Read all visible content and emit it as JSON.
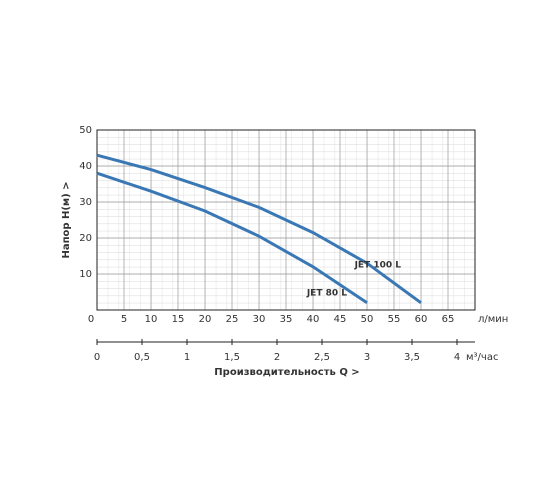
{
  "chart_data": {
    "type": "line",
    "y_label": "Напор   H(м)  >",
    "x_unit": "л/мин",
    "x2_unit": "м³/час",
    "x_label": "Производительность Q  >",
    "xlim": [
      0,
      70
    ],
    "xticks": [
      0,
      5,
      10,
      15,
      20,
      25,
      30,
      35,
      40,
      45,
      50,
      55,
      60,
      65
    ],
    "ylim": [
      0,
      50
    ],
    "yticks": [
      10,
      20,
      30,
      40,
      50
    ],
    "x2lim": [
      0,
      4.2
    ],
    "x2ticks": [
      0,
      {
        "value": 0.5,
        "label": "0,5"
      },
      1,
      {
        "value": 1.5,
        "label": "1,5"
      },
      2,
      {
        "value": 2.5,
        "label": "2,5"
      },
      3,
      {
        "value": 3.5,
        "label": "3,5"
      },
      4
    ],
    "grid": true,
    "series": [
      {
        "name": "JET 80 L",
        "color": "#3a78b5",
        "x": [
          0,
          10,
          20,
          30,
          40,
          50
        ],
        "values": [
          38,
          33,
          27.5,
          20.5,
          12,
          2
        ]
      },
      {
        "name": "JET 100 L",
        "color": "#3a78b5",
        "x": [
          0,
          10,
          20,
          30,
          40,
          50,
          60
        ],
        "values": [
          43,
          39,
          34,
          28.5,
          21.5,
          13,
          2
        ]
      }
    ]
  }
}
